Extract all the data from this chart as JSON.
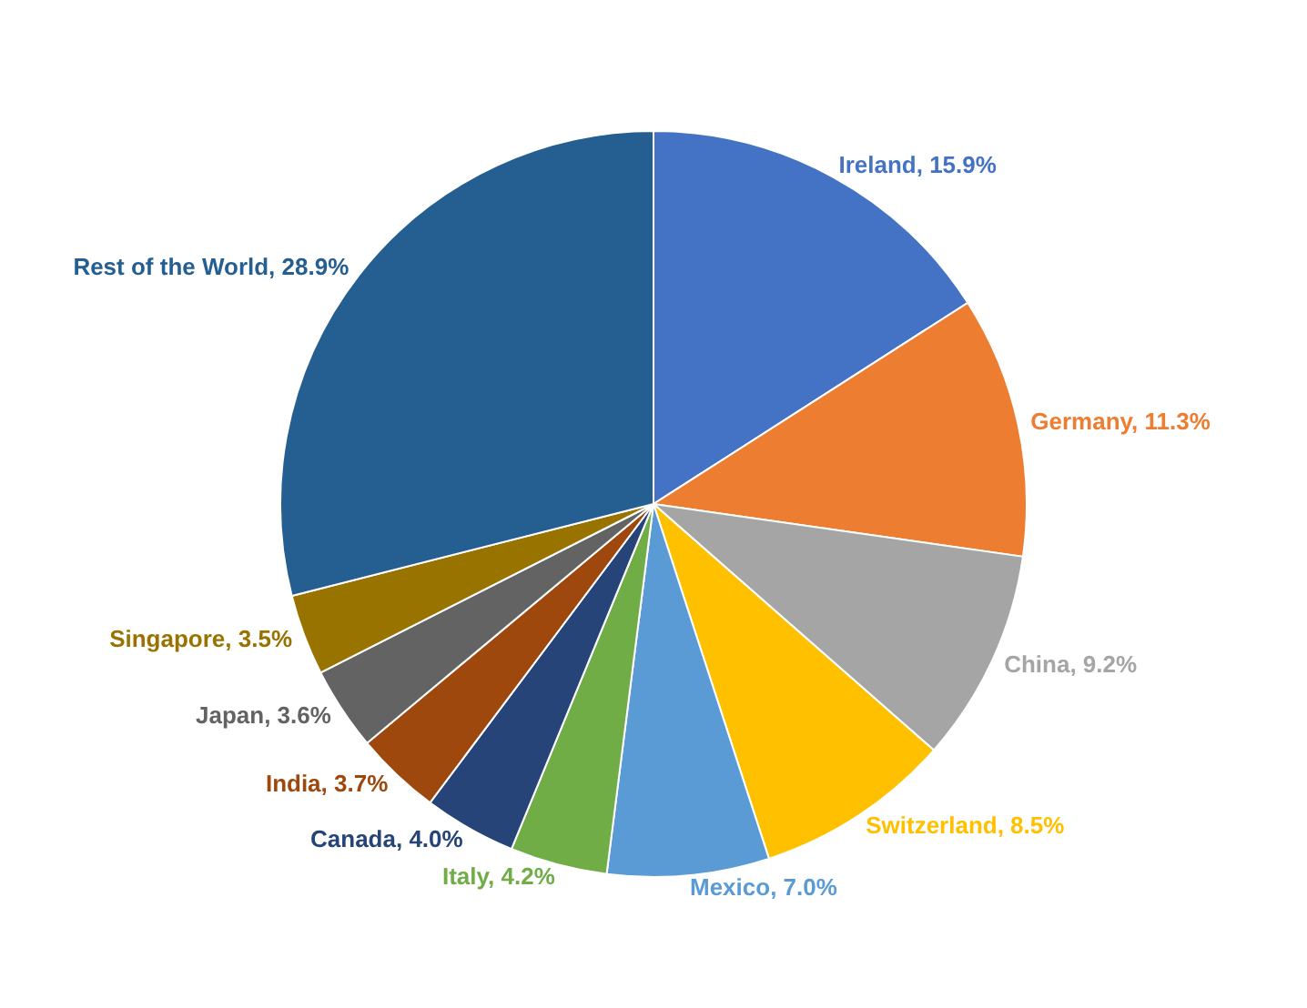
{
  "chart_data": {
    "type": "pie",
    "categories": [
      "Ireland",
      "Germany",
      "China",
      "Switzerland",
      "Mexico",
      "Italy",
      "Canada",
      "India",
      "Japan",
      "Singapore",
      "Rest of the World"
    ],
    "values": [
      15.9,
      11.3,
      9.2,
      8.5,
      7.0,
      4.2,
      4.0,
      3.7,
      3.6,
      3.5,
      28.9
    ],
    "value_labels": [
      "15.9%",
      "11.3%",
      "9.2%",
      "8.5%",
      "7.0%",
      "4.2%",
      "4.0%",
      "3.7%",
      "3.6%",
      "3.5%",
      "28.9%"
    ],
    "colors": [
      "#4472c4",
      "#ed7d31",
      "#a5a5a5",
      "#ffc000",
      "#5b9bd5",
      "#70ad47",
      "#264478",
      "#9e480e",
      "#636363",
      "#997300",
      "#255e91"
    ]
  }
}
